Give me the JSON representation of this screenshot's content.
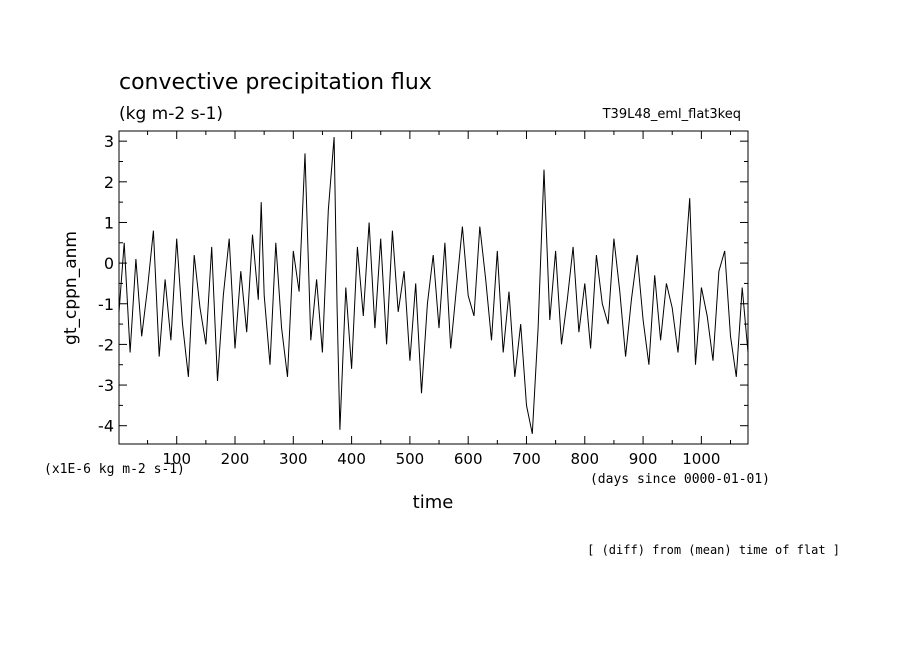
{
  "chart_data": {
    "type": "line",
    "title": "convective precipitation flux",
    "units": "(kg m-2 s-1)",
    "experiment": "T39L48_eml_flat3keq",
    "xlabel": "time",
    "xunits": "(days since 0000-01-01)",
    "ylabel": "gt_cppn_anm",
    "yunits": "(x1E-6 kg m-2 s-1)",
    "footnote": "[ (diff) from (mean) time of flat ]",
    "xlim": [
      1,
      1080
    ],
    "ylim": [
      -4.45,
      3.25
    ],
    "xticks": [
      100,
      200,
      300,
      400,
      500,
      600,
      700,
      800,
      900,
      1000
    ],
    "yticks": [
      -4,
      -3,
      -2,
      -1,
      0,
      1,
      2,
      3
    ],
    "line_color": "#000000",
    "grid": false,
    "series": [
      {
        "x": [
          1,
          10,
          20,
          30,
          40,
          50,
          60,
          70,
          80,
          90,
          100,
          110,
          120,
          130,
          140,
          150,
          160,
          170,
          180,
          190,
          200,
          210,
          220,
          230,
          240,
          245,
          250,
          260,
          270,
          280,
          290,
          300,
          310,
          320,
          330,
          340,
          350,
          360,
          370,
          375,
          380,
          390,
          400,
          410,
          420,
          430,
          440,
          450,
          460,
          470,
          480,
          490,
          500,
          510,
          520,
          530,
          540,
          550,
          560,
          570,
          580,
          590,
          600,
          610,
          620,
          630,
          640,
          650,
          660,
          670,
          680,
          690,
          700,
          710,
          720,
          730,
          740,
          750,
          760,
          770,
          780,
          790,
          800,
          810,
          820,
          830,
          840,
          850,
          860,
          870,
          880,
          890,
          900,
          910,
          920,
          930,
          940,
          950,
          960,
          970,
          980,
          990,
          1000,
          1010,
          1020,
          1030,
          1040,
          1050,
          1060,
          1070,
          1080
        ],
        "y": [
          -1.2,
          0.5,
          -2.2,
          0.1,
          -1.8,
          -0.6,
          0.8,
          -2.3,
          -0.4,
          -1.9,
          0.6,
          -1.5,
          -2.8,
          0.2,
          -1.1,
          -2.0,
          0.4,
          -2.9,
          -0.8,
          0.6,
          -2.1,
          -0.2,
          -1.7,
          0.7,
          -0.9,
          1.5,
          -0.8,
          -2.5,
          0.5,
          -1.6,
          -2.8,
          0.3,
          -0.7,
          2.7,
          -1.9,
          -0.4,
          -2.2,
          1.3,
          3.1,
          -1.0,
          -4.1,
          -0.6,
          -2.6,
          0.4,
          -1.3,
          1.0,
          -1.6,
          0.6,
          -2.0,
          0.8,
          -1.2,
          -0.2,
          -2.4,
          -0.5,
          -3.2,
          -1.0,
          0.2,
          -1.6,
          0.5,
          -2.1,
          -0.6,
          0.9,
          -0.8,
          -1.3,
          0.9,
          -0.4,
          -1.9,
          0.3,
          -2.2,
          -0.7,
          -2.8,
          -1.5,
          -3.5,
          -4.2,
          -1.6,
          2.3,
          -1.4,
          0.3,
          -2.0,
          -0.9,
          0.4,
          -1.7,
          -0.5,
          -2.1,
          0.2,
          -1.0,
          -1.5,
          0.6,
          -0.7,
          -2.3,
          -0.9,
          0.2,
          -1.4,
          -2.5,
          -0.3,
          -1.9,
          -0.5,
          -1.1,
          -2.2,
          -0.4,
          1.6,
          -2.5,
          -0.6,
          -1.3,
          -2.4,
          -0.2,
          0.3,
          -1.8,
          -2.8,
          -0.6,
          -2.2
        ]
      }
    ]
  }
}
